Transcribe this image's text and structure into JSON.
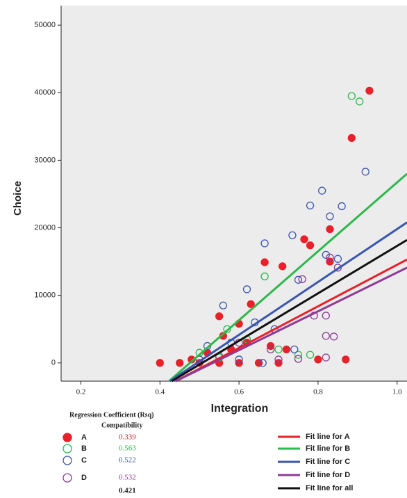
{
  "chart_data": {
    "type": "scatter",
    "x_label": "Integration",
    "y_label": "Choice",
    "xlim": [
      0.15,
      1.025
    ],
    "ylim": [
      -2700,
      52900
    ],
    "xticks": [
      0.2,
      0.4,
      0.6,
      0.8,
      {
        "value": 1,
        "label": "1.0"
      }
    ],
    "yticks": [
      0,
      10000,
      20000,
      30000,
      40000,
      50000
    ],
    "legend_title": "Regression Coefficient (Rsq)",
    "legend_subtitle": "Compatibility",
    "series": [
      {
        "name": "A",
        "color": "#e8202a",
        "filled": true,
        "rsq": 0.339,
        "x": [
          0.93,
          0.885,
          0.83,
          0.765,
          0.78,
          0.665,
          0.83,
          0.71,
          0.55,
          0.63,
          0.6,
          0.56,
          0.87,
          0.4,
          0.45,
          0.5,
          0.55,
          0.6,
          0.65,
          0.7,
          0.72,
          0.52,
          0.48,
          0.62,
          0.68,
          0.58,
          0.8
        ],
        "values": [
          40300,
          33300,
          19800,
          18300,
          17400,
          14900,
          15000,
          14300,
          6900,
          8700,
          5800,
          4000,
          500,
          0,
          0,
          0,
          0,
          0,
          0,
          0,
          2000,
          1500,
          500,
          3000,
          2500,
          2000,
          500
        ]
      },
      {
        "name": "B",
        "color": "#2db84a",
        "filled": false,
        "rsq": 0.563,
        "x": [
          0.885,
          0.905,
          0.665,
          0.57,
          0.78,
          0.75,
          0.62,
          0.5,
          0.7,
          0.55
        ],
        "values": [
          39500,
          38700,
          12800,
          5000,
          1200,
          1200,
          3500,
          1500,
          2000,
          800
        ]
      },
      {
        "name": "C",
        "color": "#3a56b0",
        "filled": false,
        "rsq": 0.522,
        "x": [
          0.92,
          0.81,
          0.78,
          0.86,
          0.83,
          0.735,
          0.665,
          0.82,
          0.85,
          0.75,
          0.62,
          0.56,
          0.64,
          0.69,
          0.58,
          0.52,
          0.74,
          0.6,
          0.66
        ],
        "values": [
          28300,
          25500,
          23300,
          23200,
          21700,
          18900,
          17700,
          16000,
          15400,
          12300,
          10900,
          8500,
          6000,
          5000,
          3000,
          2500,
          2000,
          500,
          0
        ]
      },
      {
        "name": "D",
        "color": "#8e3a96",
        "filled": false,
        "rsq": 0.532,
        "x": [
          0.83,
          0.85,
          0.76,
          0.82,
          0.79,
          0.84,
          0.82,
          0.75,
          0.68,
          0.6,
          0.55,
          0.5,
          0.7,
          0.82
        ],
        "values": [
          15600,
          14100,
          12400,
          7000,
          7000,
          3900,
          4000,
          600,
          2000,
          3000,
          1000,
          500,
          500,
          800
        ]
      }
    ],
    "fit_lines": [
      {
        "name": "Fit line for A",
        "color": "#e8202a",
        "x": [
          0.44,
          1.025
        ],
        "values": [
          -2700,
          15300
        ]
      },
      {
        "name": "Fit line for B",
        "color": "#2db84a",
        "x": [
          0.423,
          1.025
        ],
        "values": [
          -2700,
          28000
        ]
      },
      {
        "name": "Fit line for C",
        "color": "#3a56b0",
        "x": [
          0.425,
          1.025
        ],
        "values": [
          -2700,
          20800
        ]
      },
      {
        "name": "Fit line for D",
        "color": "#8e3a96",
        "x": [
          0.44,
          1.025
        ],
        "values": [
          -2700,
          14100
        ]
      },
      {
        "name": "Fit line for all",
        "color": "#111111",
        "x": [
          0.43,
          1.025
        ],
        "values": [
          -2700,
          18200
        ],
        "rsq": 0.421
      }
    ]
  }
}
